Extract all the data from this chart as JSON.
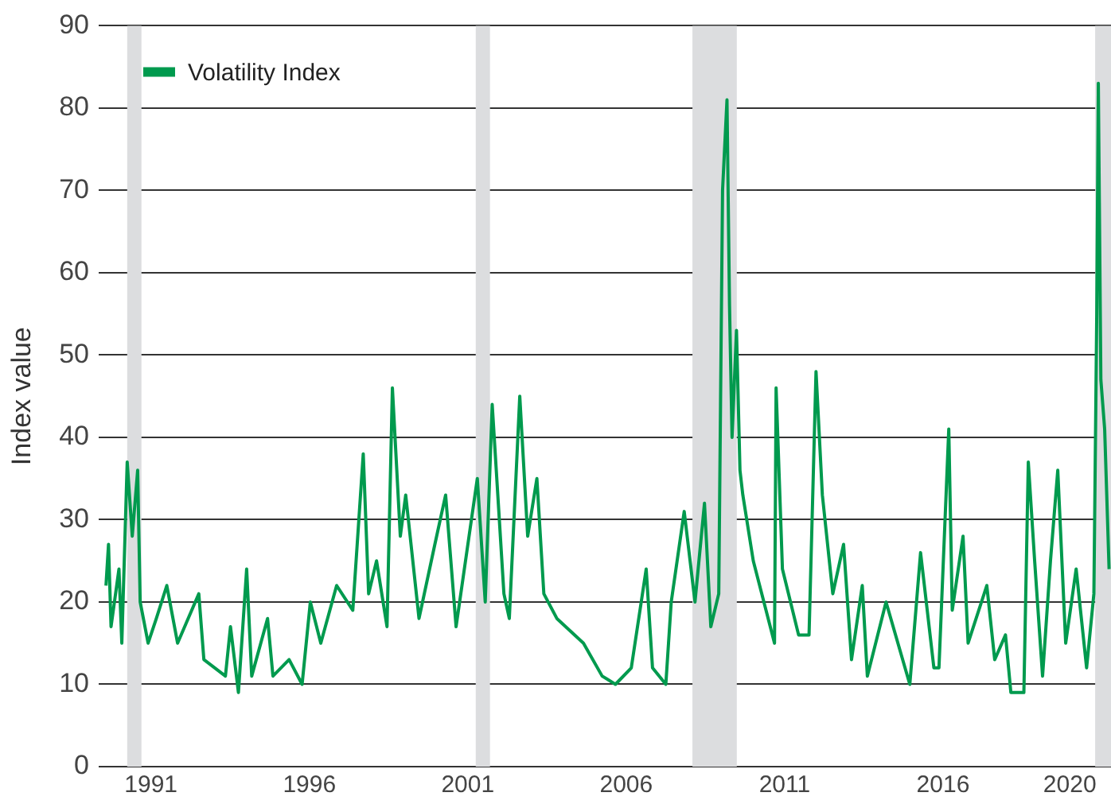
{
  "chart_data": {
    "type": "line",
    "ylabel": "Index value",
    "x": [
      1989.58,
      1989.66,
      1989.74,
      1989.99,
      1990.08,
      1990.25,
      1990.41,
      1990.58,
      1990.66,
      1990.91,
      1991.17,
      1991.5,
      1991.84,
      1992.51,
      1992.67,
      1993.35,
      1993.51,
      1993.76,
      1994.02,
      1994.18,
      1994.68,
      1994.85,
      1995.36,
      1995.77,
      1996.03,
      1996.36,
      1996.86,
      1997.37,
      1997.7,
      1997.87,
      1998.12,
      1998.45,
      1998.62,
      1998.87,
      1999.04,
      1999.46,
      1999.96,
      2000.3,
      2000.63,
      2001.3,
      2001.55,
      2001.77,
      2002.14,
      2002.31,
      2002.64,
      2002.89,
      2003.18,
      2003.4,
      2003.81,
      2004.65,
      2005.24,
      2005.66,
      2006.16,
      2006.63,
      2006.83,
      2007.25,
      2007.42,
      2007.83,
      2008.17,
      2008.47,
      2008.67,
      2008.92,
      2009.04,
      2009.18,
      2009.26,
      2009.34,
      2009.48,
      2009.59,
      2009.68,
      2010.01,
      2010.68,
      2010.73,
      2010.93,
      2011.44,
      2011.77,
      2011.99,
      2012.19,
      2012.52,
      2012.86,
      2013.11,
      2013.45,
      2013.61,
      2014.2,
      2014.95,
      2015.29,
      2015.71,
      2015.87,
      2016.18,
      2016.29,
      2016.63,
      2016.79,
      2017.38,
      2017.63,
      2017.97,
      2018.14,
      2018.55,
      2018.69,
      2018.89,
      2019.14,
      2019.39,
      2019.62,
      2019.87,
      2020.2,
      2020.53,
      2020.76,
      2020.85,
      2020.9,
      2020.98,
      2021.1,
      2021.24
    ],
    "series": [
      {
        "name": "Volatility Index",
        "color": "#009a4e",
        "values": [
          22,
          27,
          17,
          24,
          15,
          37,
          28,
          36,
          20,
          15,
          18,
          22,
          15,
          21,
          13,
          11,
          17,
          9,
          24,
          11,
          18,
          11,
          13,
          10,
          20,
          15,
          22,
          19,
          38,
          21,
          25,
          17,
          46,
          28,
          33,
          18,
          27,
          33,
          17,
          35,
          20,
          44,
          21,
          18,
          45,
          28,
          35,
          21,
          18,
          15,
          11,
          10,
          12,
          24,
          12,
          10,
          20,
          31,
          20,
          32,
          17,
          21,
          70,
          81,
          56,
          40,
          53,
          36,
          33,
          25,
          15,
          46,
          24,
          16,
          16,
          48,
          33,
          21,
          27,
          13,
          22,
          11,
          20,
          10,
          26,
          12,
          12,
          41,
          19,
          28,
          15,
          22,
          13,
          16,
          9,
          9,
          37,
          25,
          11,
          25,
          36,
          15,
          24,
          12,
          21,
          55,
          83,
          47,
          41,
          24
        ]
      }
    ],
    "xlim": [
      1989.35,
      2021.3
    ],
    "xticks": [
      1991,
      1996,
      2001,
      2006,
      2011,
      2016,
      2020
    ],
    "ylim": [
      0,
      90
    ],
    "yticks": [
      0,
      10,
      20,
      30,
      40,
      50,
      60,
      70,
      80,
      90
    ],
    "bands": [
      {
        "axis": "x",
        "from": 1990.25,
        "to": 1990.7,
        "color": "#dcdddf"
      },
      {
        "axis": "x",
        "from": 2001.25,
        "to": 2001.7,
        "color": "#dcdddf"
      },
      {
        "axis": "x",
        "from": 2008.09,
        "to": 2009.49,
        "color": "#dcdddf"
      },
      {
        "axis": "x",
        "from": 2020.8,
        "to": 2021.3,
        "color": "#dcdddf"
      }
    ],
    "grid": "y",
    "legend": "top left",
    "marker": "none",
    "line_style": "solid"
  }
}
